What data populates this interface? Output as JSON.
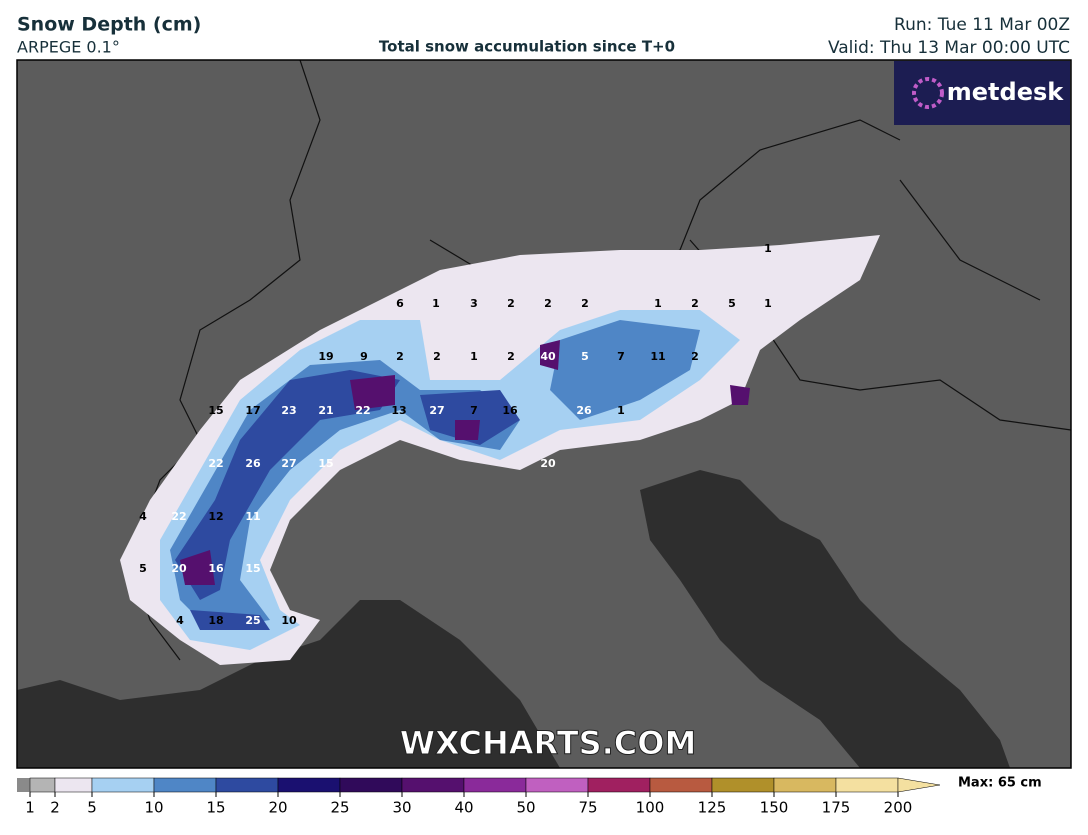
{
  "header": {
    "title": "Snow Depth (cm)",
    "model": "ARPEGE 0.1°",
    "subtitle": "Total snow accumulation since T+0",
    "run": "Run: Tue 11 Mar 00Z",
    "valid": "Valid: Thu 13 Mar 00:00 UTC"
  },
  "logo": "metdesk",
  "watermark": "WXCHARTS.COM",
  "point_labels": [
    1,
    6,
    1,
    3,
    2,
    2,
    2,
    1,
    2,
    5,
    1,
    19,
    9,
    2,
    2,
    1,
    2,
    40,
    5,
    7,
    11,
    2,
    15,
    17,
    23,
    21,
    22,
    13,
    27,
    7,
    16,
    26,
    1,
    22,
    26,
    27,
    15,
    20,
    4,
    22,
    12,
    11,
    5,
    20,
    16,
    15,
    4,
    18,
    25,
    10
  ],
  "colorbar": {
    "ticks": [
      1,
      2,
      5,
      10,
      15,
      20,
      25,
      30,
      40,
      50,
      75,
      100,
      125,
      150,
      175,
      200
    ],
    "colors": [
      "#b4b4b4",
      "#ece6f0",
      "#a6d0f2",
      "#4f86c6",
      "#2e4aa0",
      "#1a1070",
      "#300a5a",
      "#55106e",
      "#8a2a9a",
      "#c060c0",
      "#a02060",
      "#b85a40",
      "#b0902a",
      "#d8b860",
      "#f4e0a0"
    ],
    "max_label": "Max: 65 cm"
  }
}
